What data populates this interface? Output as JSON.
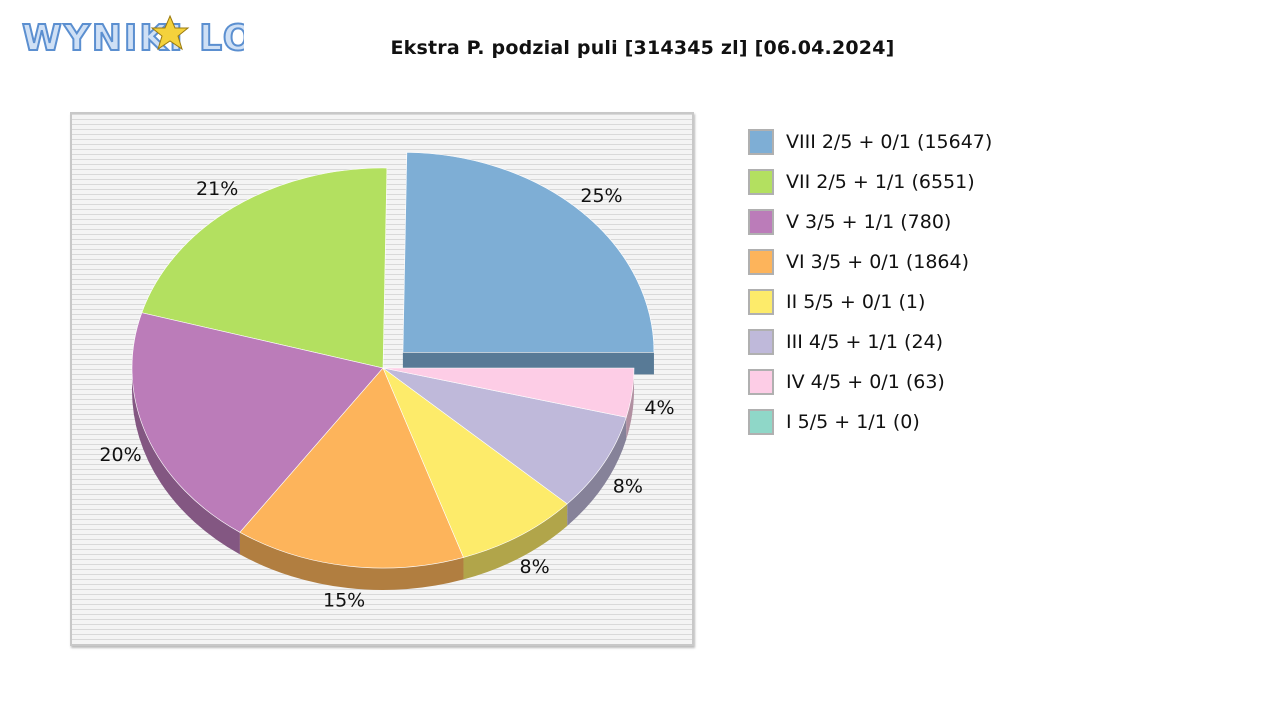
{
  "logo": {
    "text": "WYNIKI LOTTO"
  },
  "chart_data": {
    "type": "pie",
    "title": "Ekstra P. podzial puli [314345 zl] [06.04.2024]",
    "legend_position": "right",
    "background": "striped-grey",
    "slices": [
      {
        "label": "VIII 2/5 + 0/1 (15647)",
        "percent": 25,
        "percent_label": "25%",
        "color": "#7eaed5",
        "side_color": "#587a96",
        "exploded": true
      },
      {
        "label": "VII 2/5 + 1/1 (6551)",
        "percent": 21,
        "percent_label": "21%",
        "color": "#b3e060",
        "side_color": "#7d9c43",
        "exploded": false
      },
      {
        "label": "V 3/5 + 1/1 (780)",
        "percent": 20,
        "percent_label": "20%",
        "color": "#bb7cb9",
        "side_color": "#835782",
        "exploded": false
      },
      {
        "label": "VI 3/5 + 0/1 (1864)",
        "percent": 15,
        "percent_label": "15%",
        "color": "#fdb45b",
        "side_color": "#b17e40",
        "exploded": false
      },
      {
        "label": "II 5/5 + 0/1 (1)",
        "percent": 8,
        "percent_label": "8%",
        "color": "#fdeb6a",
        "side_color": "#b1a54a",
        "exploded": false
      },
      {
        "label": "III 4/5 + 1/1 (24)",
        "percent": 8,
        "percent_label": "8%",
        "color": "#bfb9da",
        "side_color": "#868299",
        "exploded": false
      },
      {
        "label": "IV 4/5 + 0/1 (63)",
        "percent": 4,
        "percent_label": "4%",
        "color": "#fdcde6",
        "side_color": "#b190a1",
        "exploded": false
      },
      {
        "label": "I 5/5 + 1/1 (0)",
        "percent": 0,
        "percent_label": "",
        "color": "#8fd7c8",
        "side_color": "#64978c",
        "exploded": false
      }
    ]
  }
}
